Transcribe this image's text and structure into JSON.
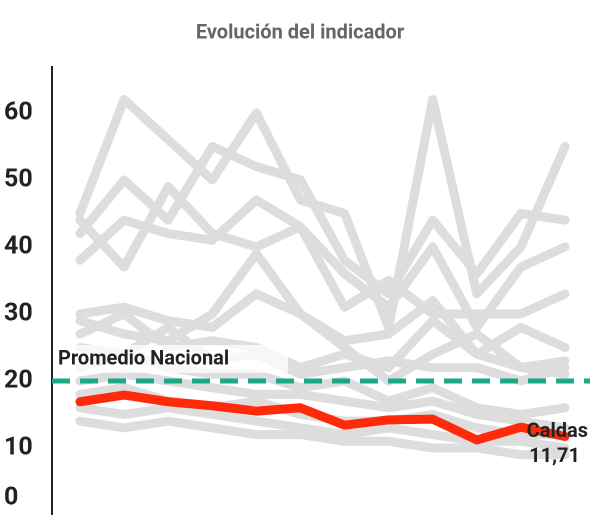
{
  "chart_data": {
    "type": "line",
    "title": "Evolución del indicador",
    "categories": [
      null,
      null,
      null,
      null,
      null,
      null,
      null,
      null,
      null,
      null,
      null,
      null
    ],
    "ylim": [
      0,
      67
    ],
    "yticks": [
      0,
      10,
      20,
      30,
      40,
      50,
      60
    ],
    "grid": false,
    "average": {
      "label": "Promedio Nacional",
      "value": 20,
      "color": "#1aa88a"
    },
    "series": [
      {
        "color": "#dddddd",
        "values": [
          45,
          62,
          56,
          50,
          60,
          47,
          45,
          28,
          62,
          33,
          40,
          55
        ]
      },
      {
        "color": "#dddddd",
        "values": [
          42,
          50,
          44,
          55,
          52,
          50,
          38,
          33,
          44,
          36,
          45,
          44
        ]
      },
      {
        "color": "#dddddd",
        "values": [
          38,
          44,
          42,
          41,
          47,
          43,
          36,
          31,
          40,
          28,
          37,
          40
        ]
      },
      {
        "color": "#dddddd",
        "values": [
          44,
          37,
          49,
          42,
          40,
          43,
          31,
          35,
          30,
          30,
          30,
          33
        ]
      },
      {
        "color": "#dddddd",
        "values": [
          30,
          31,
          29,
          28,
          33,
          30,
          26,
          27,
          32,
          24,
          28,
          25
        ]
      },
      {
        "color": "#dddddd",
        "values": [
          29,
          27,
          26,
          30,
          39,
          30,
          25,
          20,
          24,
          27,
          22,
          23
        ]
      },
      {
        "color": "#dddddd",
        "values": [
          27,
          30,
          25,
          26,
          25,
          22,
          24,
          22,
          29,
          24,
          22,
          21
        ]
      },
      {
        "color": "#dddddd",
        "values": [
          25,
          24,
          28,
          23,
          24,
          21,
          22,
          23,
          22,
          22,
          20,
          22
        ]
      },
      {
        "color": "#dddddd",
        "values": [
          22,
          24,
          22,
          21,
          21,
          19,
          20,
          17,
          19,
          16,
          15,
          16
        ]
      },
      {
        "color": "#dddddd",
        "values": [
          20,
          21,
          20,
          19,
          18,
          18,
          17,
          16,
          17,
          15,
          14,
          13
        ]
      },
      {
        "color": "#dddddd",
        "values": [
          18,
          19,
          17,
          16,
          17,
          15,
          14,
          14,
          15,
          13,
          12,
          12
        ]
      },
      {
        "color": "#dddddd",
        "values": [
          16,
          15,
          16,
          15,
          14,
          13,
          12,
          13,
          12,
          11,
          11,
          10
        ]
      },
      {
        "color": "#dddddd",
        "values": [
          14,
          13,
          14,
          13,
          12,
          12,
          11,
          11,
          10,
          10,
          9,
          9
        ]
      },
      {
        "name": "Caldas",
        "color": "#ff2a0a",
        "values": [
          16.9,
          17.9,
          16.9,
          16.3,
          15.5,
          16,
          13.4,
          14.2,
          14.3,
          11.2,
          13.1,
          11.71
        ],
        "value_labels": [
          null,
          null,
          null,
          null,
          null,
          null,
          null,
          null,
          null,
          null,
          null,
          "11,71"
        ]
      }
    ]
  }
}
